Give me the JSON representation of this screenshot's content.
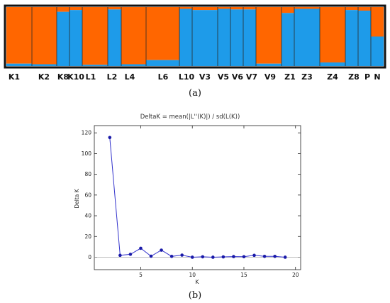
{
  "colors": {
    "orange": "#ff6600",
    "blue": "#1e9be9",
    "line": "#3333cc",
    "marker": "#1a1aa8",
    "baseline": "#aaaaaa"
  },
  "chart_data": [
    {
      "type": "bar",
      "subtype": "stacked-structure-plot",
      "panel_label": "(a)",
      "clusters": [
        "orange",
        "blue"
      ],
      "populations": [
        "K1",
        "K2",
        "K8",
        "K10",
        "L1",
        "L2",
        "L4",
        "L6",
        "L10",
        "V3",
        "V5",
        "V6",
        "V7",
        "V9",
        "Z1",
        "Z3",
        "Z4",
        "Z8",
        "P",
        "N"
      ],
      "segments": [
        {
          "population": "K1",
          "orange": 0.96
        },
        {
          "population": "K2",
          "orange": 0.97
        },
        {
          "population": "K8",
          "orange": 0.08
        },
        {
          "population": "K10",
          "orange": 0.05
        },
        {
          "population": "L1",
          "orange": 0.98
        },
        {
          "population": "L2",
          "orange": 0.04
        },
        {
          "population": "L4",
          "orange": 0.97
        },
        {
          "population": "L6",
          "orange": 0.9
        },
        {
          "population": "L10",
          "orange": 0.03
        },
        {
          "population": "V3",
          "orange": 0.05
        },
        {
          "population": "V5",
          "orange": 0.03
        },
        {
          "population": "V6",
          "orange": 0.04
        },
        {
          "population": "V7",
          "orange": 0.04
        },
        {
          "population": "V9",
          "orange": 0.96
        },
        {
          "population": "Z1",
          "orange": 0.1
        },
        {
          "population": "Z3",
          "orange": 0.03
        },
        {
          "population": "Z4",
          "orange": 0.94
        },
        {
          "population": "Z8",
          "orange": 0.05
        },
        {
          "population": "P",
          "orange": 0.06
        },
        {
          "population": "N",
          "orange": 0.5
        }
      ]
    },
    {
      "type": "line",
      "panel_label": "(b)",
      "title": "DeltaK = mean(|L''(K)|) / sd(L(K))",
      "xlabel": "K",
      "ylabel": "Delta K",
      "xlim": [
        0.5,
        20.5
      ],
      "ylim": [
        -12,
        127
      ],
      "xticks": [
        5,
        10,
        15,
        20
      ],
      "yticks": [
        0,
        20,
        40,
        60,
        80,
        100,
        120
      ],
      "grid": false,
      "baseline": 0,
      "x": [
        2,
        3,
        4,
        5,
        6,
        7,
        8,
        9,
        10,
        11,
        12,
        13,
        14,
        15,
        16,
        17,
        18,
        19
      ],
      "y": [
        115.5,
        1.8,
        2.8,
        8.6,
        1.0,
        6.8,
        0.8,
        2.0,
        0.0,
        0.4,
        0.0,
        0.3,
        0.6,
        0.5,
        1.8,
        0.8,
        0.8,
        0.0
      ]
    }
  ]
}
